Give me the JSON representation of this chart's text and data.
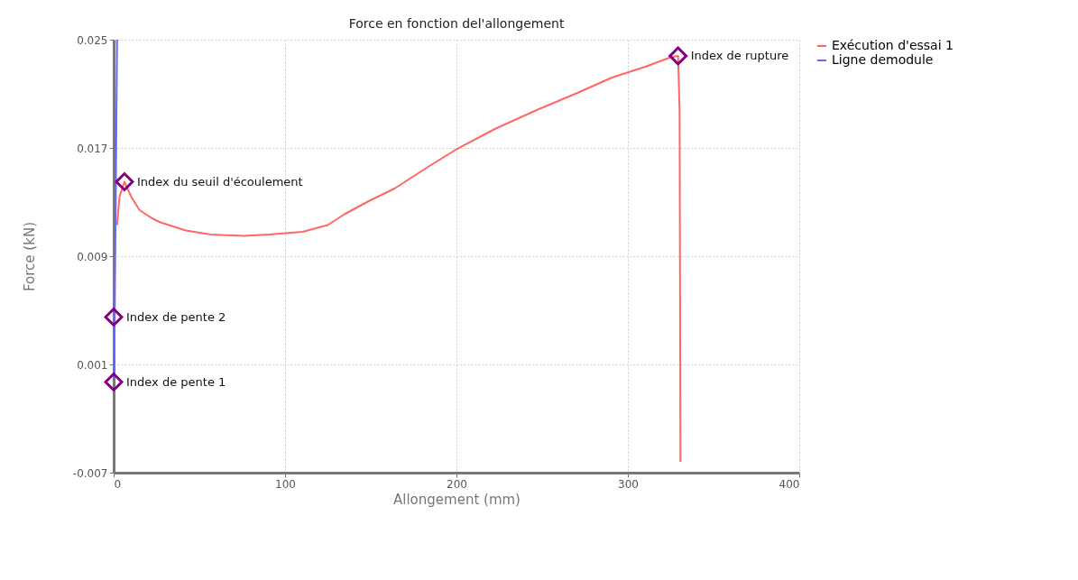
{
  "chart_data": {
    "type": "line",
    "title": "Force en fonction del'allongement",
    "xlabel": "Allongement (mm)",
    "ylabel": "Force (kN)",
    "xlim": [
      0,
      400
    ],
    "xticks": [
      0,
      100,
      200,
      300,
      400
    ],
    "ylim": [
      -0.007,
      0.025
    ],
    "yticks": [
      -0.007,
      0.001,
      0.009,
      0.017,
      0.025
    ],
    "grid": true,
    "legend": "top right",
    "marker": "none",
    "line_style": "solid",
    "series": [
      {
        "name": "Exécution d'essai 1",
        "color": "#ff6666",
        "x": [
          2.0,
          3.4,
          6.3,
          10.2,
          15.1,
          22.4,
          27.3,
          42.0,
          56.6,
          76.1,
          90.7,
          110.2,
          124.9,
          134.6,
          149.3,
          163.9,
          183.4,
          200.0,
          222.4,
          246.8,
          271.2,
          290.7,
          310.2,
          324.9,
          329.3,
          330.2,
          330.7
        ],
        "values": [
          0.0113,
          0.0134,
          0.0145,
          0.0134,
          0.0124,
          0.0118,
          0.0115,
          0.0109,
          0.0106,
          0.0105,
          0.0106,
          0.0108,
          0.0113,
          0.0121,
          0.0131,
          0.014,
          0.0156,
          0.0169,
          0.0184,
          0.0198,
          0.0211,
          0.0222,
          0.023,
          0.0237,
          0.0238,
          0.0197,
          -0.0062
        ]
      },
      {
        "name": "Ligne demodule",
        "color": "#6666ff",
        "x": [
          0.3,
          2.0
        ],
        "values": [
          0.0,
          0.025
        ]
      }
    ],
    "annotations": [
      {
        "text": "Index de pente 1",
        "x": 0,
        "y": -0.0003
      },
      {
        "text": "Index de pente 2",
        "x": 0,
        "y": 0.0045
      },
      {
        "text": "Index du seuil d'écoulement",
        "x": 6.3,
        "y": 0.0145
      },
      {
        "text": "Index de rupture",
        "x": 329.3,
        "y": 0.0238
      }
    ]
  }
}
